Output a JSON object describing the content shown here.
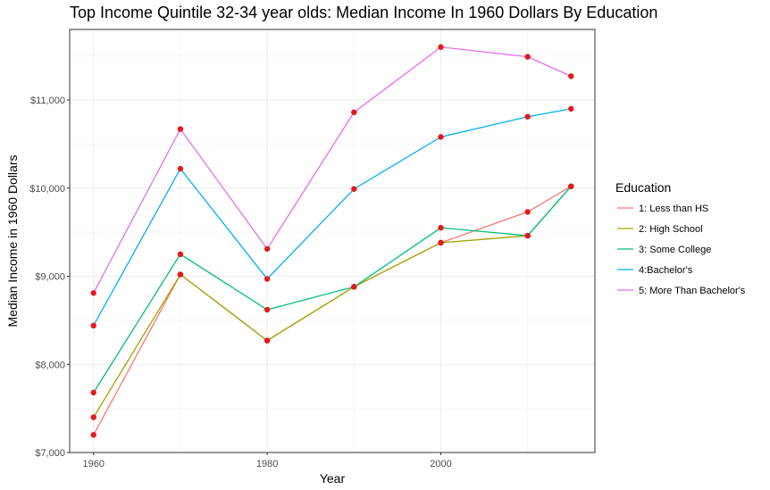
{
  "chart_data": {
    "type": "line",
    "title": "Top Income Quintile 32-34 year olds: Median Income In 1960 Dollars By Education",
    "xlabel": "Year",
    "ylabel": "Median Income in 1960 Dollars",
    "x": [
      1960,
      1970,
      1980,
      1990,
      2000,
      2010,
      2015
    ],
    "xlim": [
      1957.25,
      2017.75
    ],
    "ylim": [
      7000,
      11800
    ],
    "xticks": [
      1960,
      1980,
      2000
    ],
    "xtick_labels": [
      "1960",
      "1980",
      "2000"
    ],
    "yticks": [
      7000,
      8000,
      9000,
      10000,
      11000
    ],
    "ytick_labels": [
      "$7,000",
      "$8,000",
      "$9,000",
      "$10,000",
      "$11,000"
    ],
    "grid": true,
    "legend_title": "Education",
    "legend_position": "right",
    "point_color": "#e31a1c",
    "series": [
      {
        "name": "1: Less than HS",
        "color": "#F8766D",
        "values": [
          7200,
          9020,
          8270,
          8880,
          9380,
          9730,
          10020
        ]
      },
      {
        "name": "2: High School",
        "color": "#A3A500",
        "values": [
          7400,
          9020,
          8270,
          8880,
          9380,
          9460,
          10020
        ]
      },
      {
        "name": "3: Some College",
        "color": "#00BF7D",
        "values": [
          7680,
          9250,
          8620,
          8880,
          9550,
          9460,
          10020
        ]
      },
      {
        "name": "4:Bachelor's",
        "color": "#00B0F6",
        "values": [
          8440,
          10220,
          8970,
          9990,
          10580,
          10810,
          10900
        ]
      },
      {
        "name": "5: More Than Bachelor's",
        "color": "#E76BF3",
        "values": [
          8810,
          10670,
          9310,
          10860,
          11600,
          11490,
          11270
        ]
      }
    ]
  }
}
